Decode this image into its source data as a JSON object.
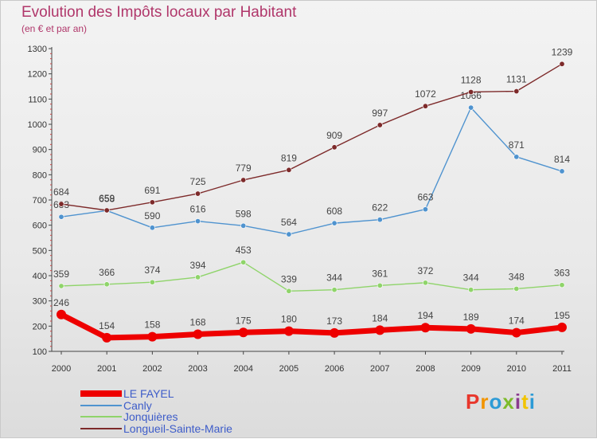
{
  "title": "Evolution des Impôts locaux par Habitant",
  "subtitle": "(en € et par an)",
  "brand": "Proxiti",
  "brand_colors": [
    "#e8372c",
    "#f29400",
    "#2d9bd6",
    "#7dbb2a",
    "#8b3a8f",
    "#f2c400",
    "#2d9bd6"
  ],
  "chart_data": {
    "type": "line",
    "x": [
      "2000",
      "2001",
      "2002",
      "2003",
      "2004",
      "2005",
      "2006",
      "2007",
      "2008",
      "2009",
      "2010",
      "2011"
    ],
    "ylim": [
      100,
      1300
    ],
    "yticks": [
      100,
      200,
      300,
      400,
      500,
      600,
      700,
      800,
      900,
      1000,
      1100,
      1200,
      1300
    ],
    "grid": false,
    "legend_position": "bottom-left",
    "series": [
      {
        "name": "LE FAYEL",
        "color": "#ee0000",
        "values": [
          246,
          154,
          158,
          168,
          175,
          180,
          173,
          184,
          194,
          189,
          174,
          195
        ]
      },
      {
        "name": "Canly",
        "color": "#4f93cf",
        "values": [
          633,
          658,
          590,
          616,
          598,
          564,
          608,
          622,
          663,
          1066,
          871,
          814
        ]
      },
      {
        "name": "Jonquières",
        "color": "#8fd46a",
        "values": [
          359,
          366,
          374,
          394,
          453,
          339,
          344,
          361,
          372,
          344,
          348,
          363
        ]
      },
      {
        "name": "Longueil-Sainte-Marie",
        "color": "#7d2a2a",
        "values": [
          684,
          659,
          691,
          725,
          779,
          819,
          909,
          997,
          1072,
          1128,
          1131,
          1239
        ]
      }
    ]
  }
}
